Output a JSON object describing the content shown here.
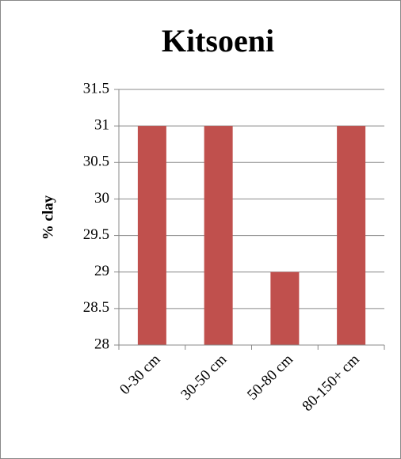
{
  "chart_data": {
    "type": "bar",
    "title": "Kitsoeni",
    "y_label": "% clay",
    "categories": [
      "0-30 cm",
      "30-50 cm",
      "50-80 cm",
      "80-150+ cm"
    ],
    "values": [
      31,
      31,
      29,
      31
    ],
    "color": "#c0504d",
    "ylim": [
      28,
      31.5
    ],
    "yticks": [
      28,
      28.5,
      29,
      29.5,
      30,
      30.5,
      31,
      31.5
    ],
    "grid": true
  }
}
